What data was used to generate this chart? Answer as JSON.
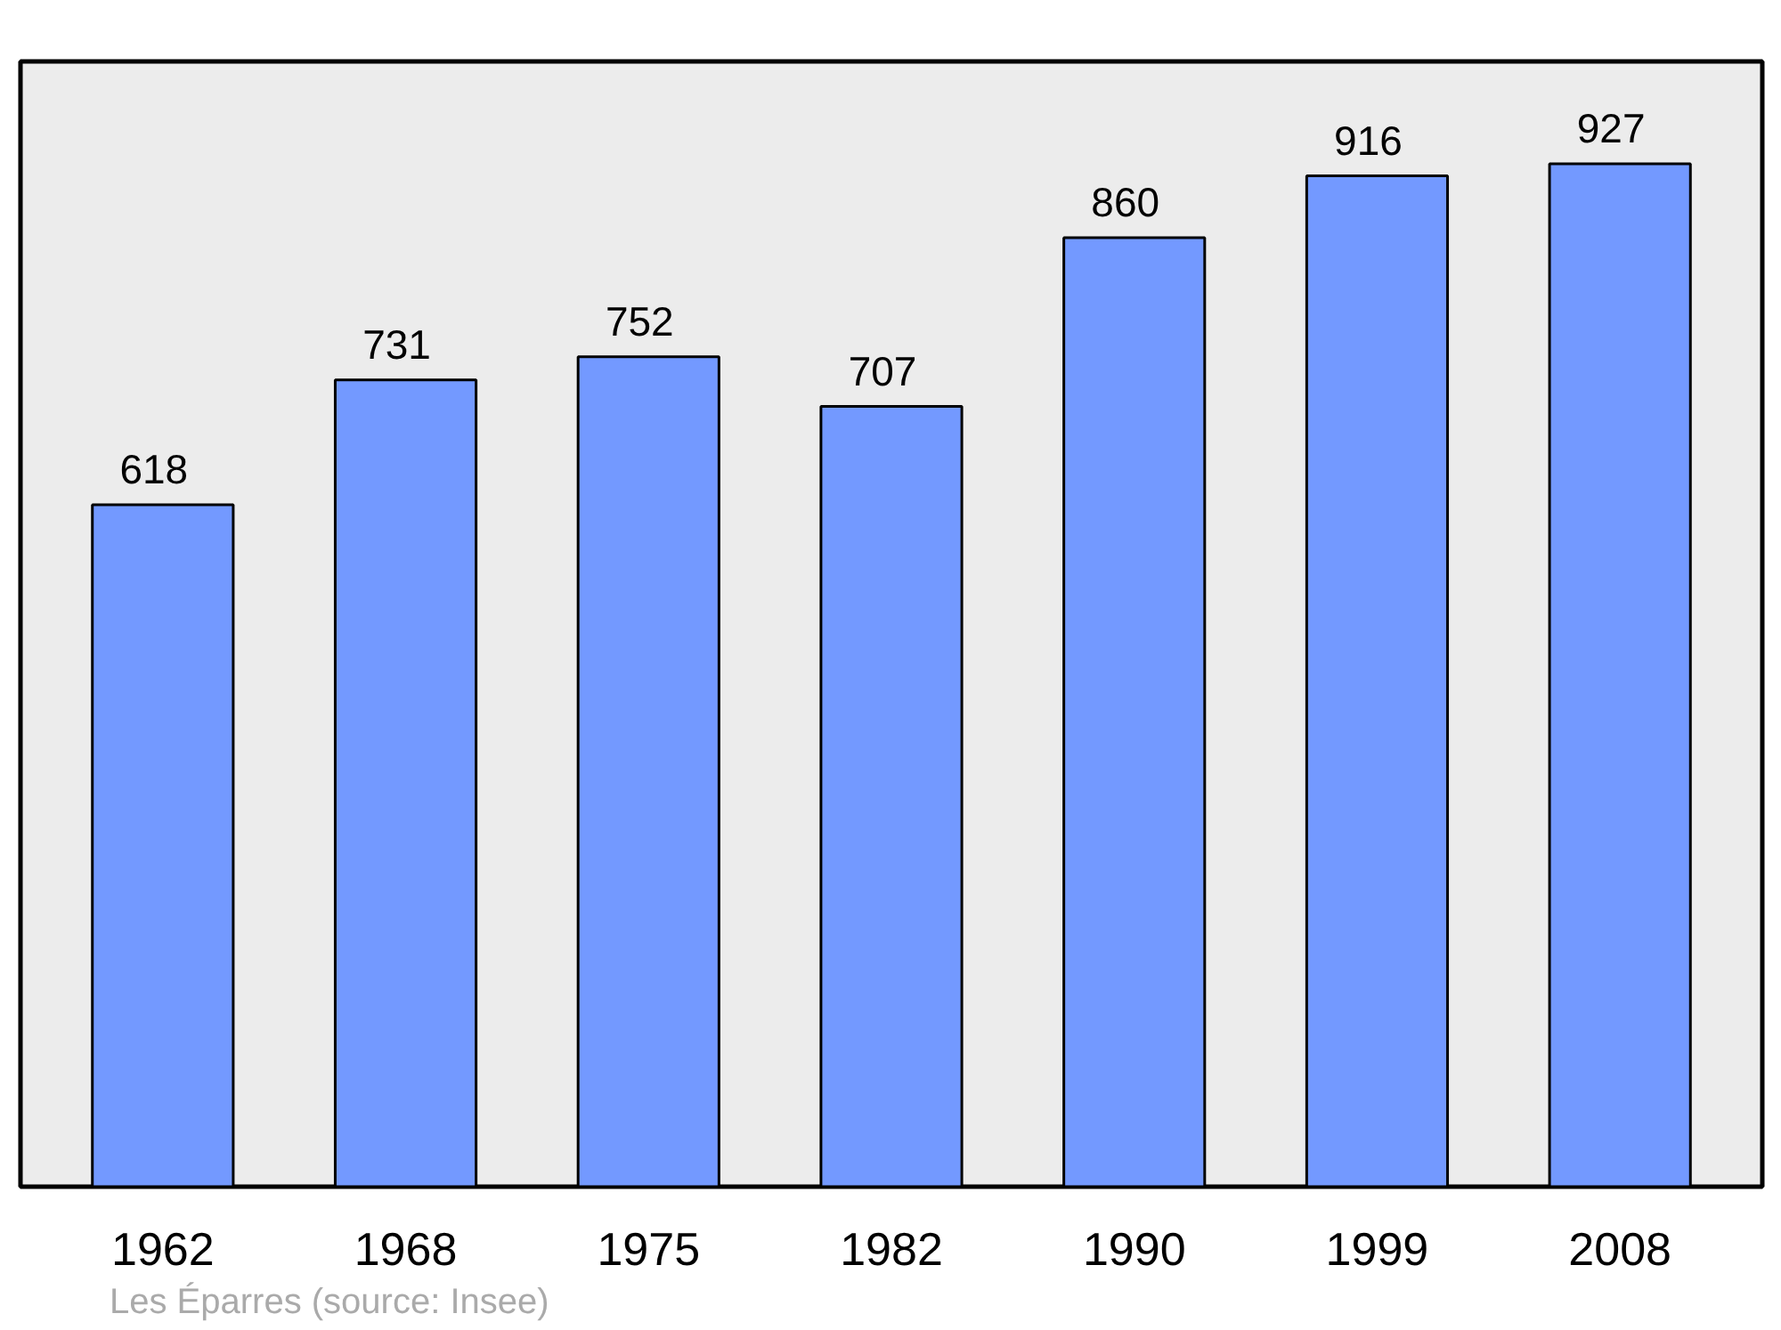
{
  "chart_data": {
    "type": "bar",
    "categories": [
      "1962",
      "1968",
      "1975",
      "1982",
      "1990",
      "1999",
      "2008"
    ],
    "values": [
      618,
      731,
      752,
      707,
      860,
      916,
      927
    ],
    "color": "#7399ff",
    "data_labels": true,
    "grid": false,
    "annotations": [
      "Les Éparres",
      "(source: Insee)"
    ]
  }
}
